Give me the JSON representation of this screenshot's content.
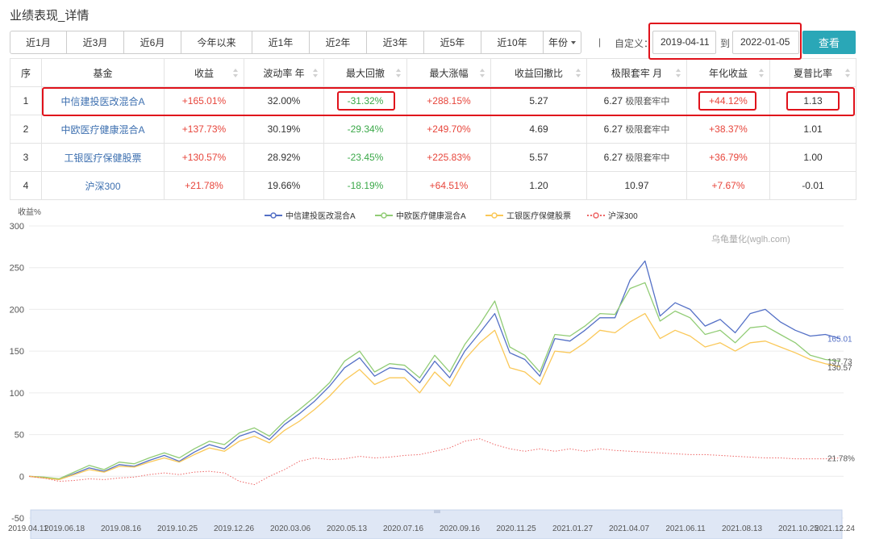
{
  "page_title": "业绩表现_详情",
  "periods": [
    {
      "label": "近1月"
    },
    {
      "label": "近3月"
    },
    {
      "label": "近6月"
    },
    {
      "label": "今年以来"
    },
    {
      "label": "近1年"
    },
    {
      "label": "近2年"
    },
    {
      "label": "近3年"
    },
    {
      "label": "近5年"
    },
    {
      "label": "近10年"
    },
    {
      "label": "年份"
    }
  ],
  "separator": "|",
  "custom_label": "自定义：",
  "start_date": "2019-04-11",
  "to_label": "到",
  "end_date": "2022-01-05",
  "query_label": "查看",
  "table": {
    "headers": [
      "序",
      "基金",
      "收益",
      "波动率 年",
      "最大回撤",
      "最大涨幅",
      "收益回撤比",
      "极限套牢 月",
      "年化收益",
      "夏普比率"
    ],
    "rows": [
      {
        "idx": "1",
        "name": "中信建投医改混合A",
        "ret": "+165.01%",
        "vol": "32.00%",
        "mdd": "-31.32%",
        "mup": "+288.15%",
        "ratio": "5.27",
        "trap_num": "6.27",
        "trap_note": "极限套牢中",
        "ann": "+44.12%",
        "sharpe": "1.13"
      },
      {
        "idx": "2",
        "name": "中欧医疗健康混合A",
        "ret": "+137.73%",
        "vol": "30.19%",
        "mdd": "-29.34%",
        "mup": "+249.70%",
        "ratio": "4.69",
        "trap_num": "6.27",
        "trap_note": "极限套牢中",
        "ann": "+38.37%",
        "sharpe": "1.01"
      },
      {
        "idx": "3",
        "name": "工银医疗保健股票",
        "ret": "+130.57%",
        "vol": "28.92%",
        "mdd": "-23.45%",
        "mup": "+225.83%",
        "ratio": "5.57",
        "trap_num": "6.27",
        "trap_note": "极限套牢中",
        "ann": "+36.79%",
        "sharpe": "1.00"
      },
      {
        "idx": "4",
        "name": "沪深300",
        "ret": "+21.78%",
        "vol": "19.66%",
        "mdd": "-18.19%",
        "mup": "+64.51%",
        "ratio": "1.20",
        "trap_num": "10.97",
        "trap_note": "",
        "ann": "+7.67%",
        "sharpe": "-0.01"
      }
    ]
  },
  "colors": {
    "positive": "#e7453b",
    "negative": "#3aa848",
    "link": "#3e70b0",
    "accent": "#2aa7b7",
    "highlight": "#e0121b"
  },
  "chart_data": {
    "type": "line",
    "ylabel": "收益%",
    "watermark": "乌龟量化(wglh.com)",
    "ylim": [
      -50,
      300
    ],
    "yticks": [
      -50,
      0,
      50,
      100,
      150,
      200,
      250,
      300
    ],
    "legend_position": "top-center",
    "x_labels": [
      "2019.04.11",
      "2019.06.18",
      "2019.08.16",
      "2019.10.25",
      "2019.12.26",
      "2020.03.06",
      "2020.05.13",
      "2020.07.16",
      "2020.09.16",
      "2020.11.25",
      "2021.01.27",
      "2021.04.07",
      "2021.06.11",
      "2021.08.13",
      "2021.10.25",
      "2021.12.24"
    ],
    "series": [
      {
        "name": "中信建投医改混合A",
        "color": "#5470c6",
        "dash": "solid",
        "marker": "circle",
        "end_label": "165.01",
        "values": [
          0,
          -2,
          -4,
          3,
          10,
          6,
          14,
          12,
          19,
          25,
          18,
          29,
          38,
          33,
          48,
          54,
          44,
          62,
          75,
          90,
          108,
          130,
          142,
          120,
          130,
          128,
          112,
          138,
          118,
          150,
          172,
          195,
          148,
          140,
          120,
          165,
          162,
          175,
          190,
          190,
          235,
          258,
          192,
          208,
          200,
          180,
          188,
          172,
          195,
          200,
          185,
          175,
          168,
          170,
          165
        ]
      },
      {
        "name": "中欧医疗健康混合A",
        "color": "#91cc75",
        "dash": "solid",
        "marker": "circle",
        "end_label": "137.73",
        "values": [
          0,
          -1,
          -3,
          5,
          13,
          8,
          17,
          15,
          22,
          28,
          22,
          33,
          42,
          38,
          52,
          58,
          48,
          66,
          80,
          95,
          112,
          138,
          150,
          125,
          135,
          133,
          118,
          145,
          125,
          158,
          182,
          210,
          155,
          145,
          125,
          170,
          168,
          180,
          195,
          194,
          225,
          232,
          186,
          198,
          190,
          170,
          175,
          160,
          178,
          180,
          170,
          160,
          145,
          140,
          138
        ]
      },
      {
        "name": "工银医疗保健股票",
        "color": "#fac858",
        "dash": "solid",
        "marker": "circle",
        "end_label": "130.57",
        "values": [
          0,
          -2,
          -4,
          2,
          8,
          5,
          12,
          11,
          17,
          22,
          17,
          26,
          34,
          30,
          42,
          48,
          40,
          55,
          66,
          80,
          96,
          115,
          128,
          110,
          118,
          118,
          100,
          125,
          108,
          140,
          160,
          175,
          130,
          125,
          110,
          150,
          148,
          160,
          175,
          172,
          185,
          195,
          165,
          175,
          168,
          155,
          160,
          150,
          160,
          162,
          155,
          148,
          140,
          135,
          131
        ]
      },
      {
        "name": "沪深300",
        "color": "#ee6666",
        "dash": "dotted",
        "marker": "circle",
        "end_label": "21.78%",
        "values": [
          0,
          -2,
          -6,
          -5,
          -3,
          -4,
          -2,
          -1,
          2,
          4,
          2,
          5,
          6,
          4,
          -6,
          -10,
          0,
          8,
          18,
          22,
          20,
          21,
          24,
          22,
          23,
          25,
          26,
          30,
          34,
          42,
          45,
          38,
          33,
          30,
          33,
          30,
          33,
          30,
          33,
          31,
          30,
          29,
          28,
          27,
          26,
          26,
          25,
          24,
          23,
          22,
          22,
          21,
          21,
          21,
          22
        ]
      }
    ]
  }
}
